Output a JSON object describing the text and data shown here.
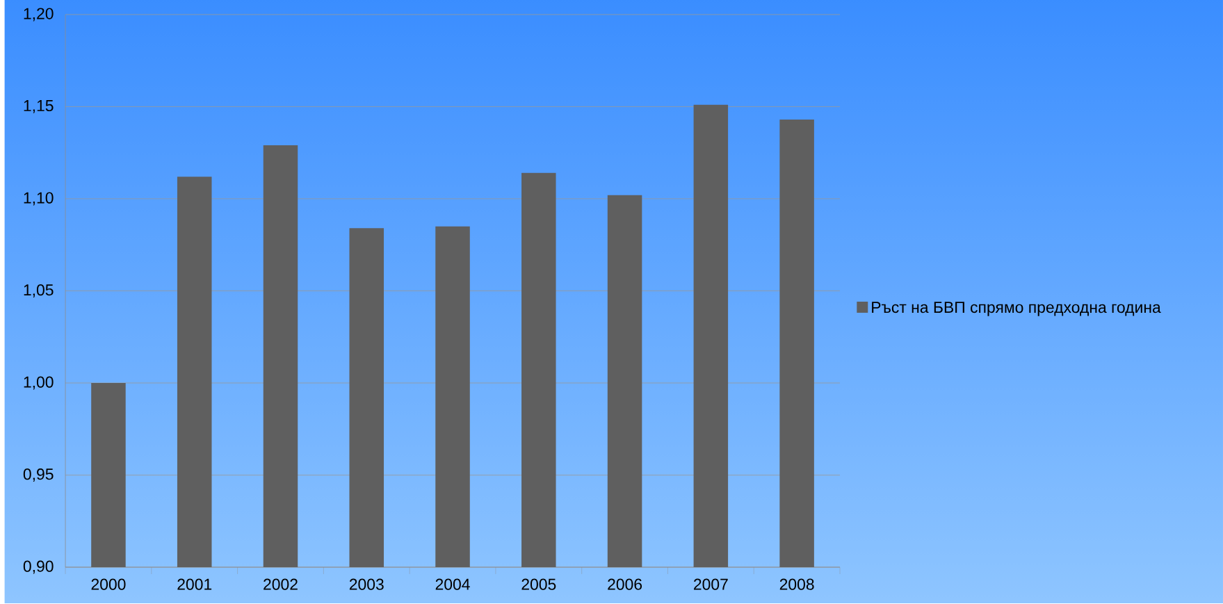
{
  "chart_data": {
    "type": "bar",
    "categories": [
      "2000",
      "2001",
      "2002",
      "2003",
      "2004",
      "2005",
      "2006",
      "2007",
      "2008"
    ],
    "series": [
      {
        "name": "Ръст на БВП спрямо предходна година",
        "color": "#5f5f5f",
        "values": [
          1.0,
          1.112,
          1.129,
          1.084,
          1.085,
          1.114,
          1.102,
          1.151,
          1.143
        ]
      }
    ],
    "ylim": [
      0.9,
      1.2
    ],
    "yticks": [
      {
        "value": 0.9,
        "label": "0,90"
      },
      {
        "value": 0.95,
        "label": "0,95"
      },
      {
        "value": 1.0,
        "label": "1,00"
      },
      {
        "value": 1.05,
        "label": "1,05"
      },
      {
        "value": 1.1,
        "label": "1,10"
      },
      {
        "value": 1.15,
        "label": "1,15"
      },
      {
        "value": 1.2,
        "label": "1,20"
      }
    ],
    "grid": "y",
    "legend": "right"
  }
}
